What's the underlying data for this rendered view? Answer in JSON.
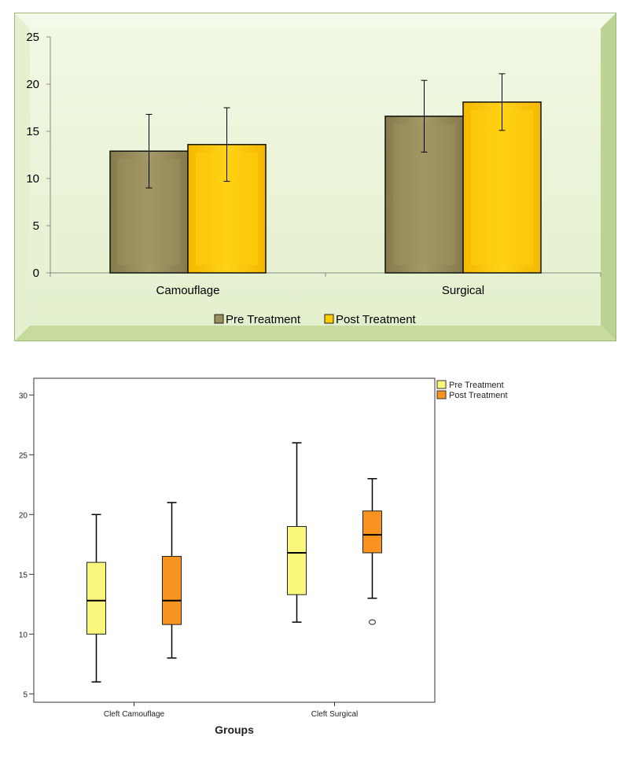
{
  "chart_data": [
    {
      "type": "bar",
      "categories": [
        "Camouflage",
        "Surgical"
      ],
      "series": [
        {
          "name": "Pre Treatment",
          "values": [
            12.9,
            16.6
          ],
          "error": [
            3.9,
            3.8
          ]
        },
        {
          "name": "Post Treatment",
          "values": [
            13.6,
            18.1
          ],
          "error": [
            3.9,
            3.0
          ]
        }
      ],
      "ylim": [
        0,
        25
      ],
      "yticks": [
        "0",
        "5",
        "10",
        "15",
        "20",
        "25"
      ],
      "legend": "bottom",
      "grid": false,
      "colors": {
        "Pre Treatment": "#9c8f5e",
        "Post Treatment": "#ffcc00",
        "background": "#e6f2d2",
        "frame": "#cfe2a9"
      }
    },
    {
      "type": "boxplot",
      "categories": [
        "Cleft Camouflage",
        "Cleft Surgical"
      ],
      "xlabel": "Groups",
      "ylim": [
        4.3,
        31.4
      ],
      "yticks": [
        "5",
        "10",
        "15",
        "20",
        "25",
        "30"
      ],
      "series": [
        {
          "name": "Pre Treatment",
          "boxes": [
            {
              "min": 6,
              "q1": 10,
              "median": 12.8,
              "q3": 16,
              "max": 20,
              "outliers": []
            },
            {
              "min": 11,
              "q1": 13.3,
              "median": 16.8,
              "q3": 19,
              "max": 26,
              "outliers": []
            }
          ]
        },
        {
          "name": "Post Treatment",
          "boxes": [
            {
              "min": 8,
              "q1": 10.8,
              "median": 12.8,
              "q3": 16.5,
              "max": 21,
              "outliers": []
            },
            {
              "min": 13,
              "q1": 16.8,
              "median": 18.3,
              "q3": 20.3,
              "max": 23,
              "outliers": [
                11
              ]
            }
          ]
        }
      ],
      "legend": "top-right",
      "colors": {
        "Pre Treatment": "#fbf77d",
        "Post Treatment": "#f7931e"
      }
    }
  ]
}
